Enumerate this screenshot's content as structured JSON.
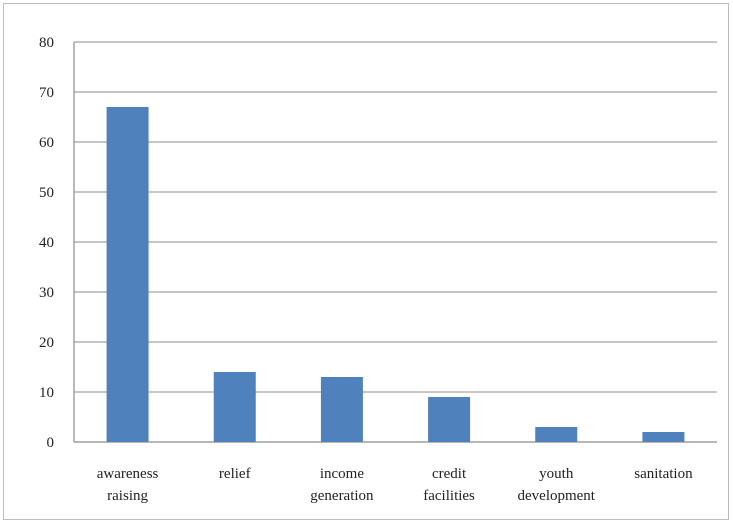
{
  "chart_data": {
    "type": "bar",
    "categories": [
      [
        "awareness",
        "raising"
      ],
      [
        "relief"
      ],
      [
        "income",
        "generation"
      ],
      [
        "credit",
        "facilities"
      ],
      [
        "youth",
        "development"
      ],
      [
        "sanitation"
      ]
    ],
    "values": [
      67,
      14,
      13,
      9,
      3,
      2
    ],
    "ylim": [
      0,
      80
    ],
    "yticks": [
      "0",
      "10",
      "20",
      "30",
      "40",
      "50",
      "60",
      "70",
      "80"
    ],
    "bar_color": "#4f81bd",
    "grid": true,
    "legend": "none",
    "title": "",
    "xlabel": "",
    "ylabel": ""
  }
}
